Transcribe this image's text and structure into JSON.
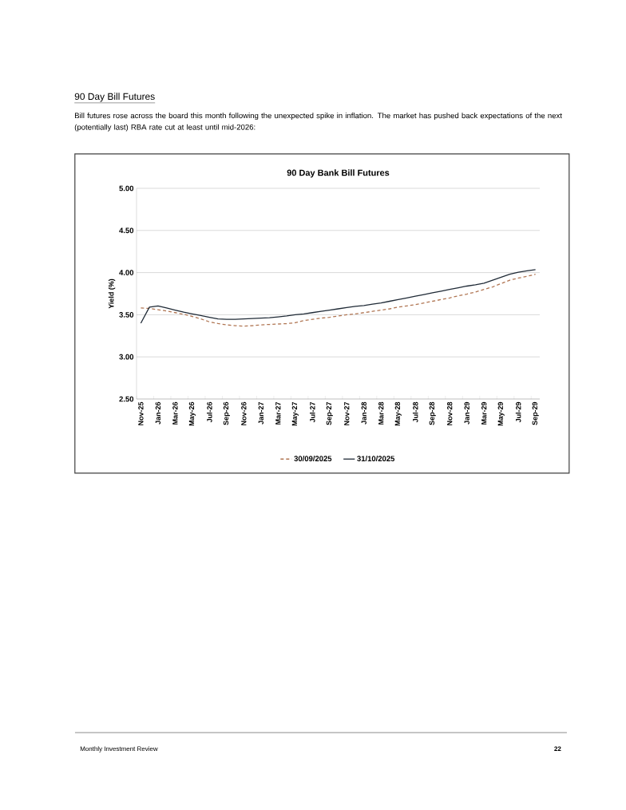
{
  "chart_data": {
    "type": "line",
    "title": "90 Day Bank Bill Futures",
    "ylabel": "Yield (%)",
    "annotations": [
      "90 Day Bill Futures",
      "Bill futures rose across the board this month following the unexpected spike in inflation. The market has pushed back expectations of the next (potentially last) RBA rate cut at least until mid-2026:",
      "Monthly Investment Review",
      "22"
    ],
    "categories": [
      "Nov-25",
      null,
      "Jan-26",
      null,
      "Mar-26",
      null,
      "May-26",
      null,
      "Jul-26",
      null,
      "Sep-26",
      null,
      "Nov-26",
      null,
      "Jan-27",
      null,
      "Mar-27",
      null,
      "May-27",
      null,
      "Jul-27",
      null,
      "Sep-27",
      null,
      "Nov-27",
      null,
      "Jan-28",
      null,
      "Mar-28",
      null,
      "May-28",
      null,
      "Jul-28",
      null,
      "Sep-28",
      null,
      "Nov-28",
      null,
      "Jan-29",
      null,
      "Mar-29",
      null,
      "May-29",
      null,
      "Jul-29",
      null,
      "Sep-29"
    ],
    "series": [
      {
        "name": "30/09/2025",
        "color": "#b07552",
        "line_style": "dashed",
        "values": [
          3.58,
          3.575,
          3.56,
          3.545,
          3.525,
          3.505,
          3.48,
          3.45,
          3.415,
          3.395,
          3.38,
          3.37,
          3.365,
          3.37,
          3.38,
          3.385,
          3.39,
          3.395,
          3.405,
          3.43,
          3.445,
          3.46,
          3.47,
          3.485,
          3.5,
          3.51,
          3.525,
          3.54,
          3.555,
          3.57,
          3.59,
          3.605,
          3.62,
          3.64,
          3.66,
          3.68,
          3.7,
          3.725,
          3.745,
          3.77,
          3.8,
          3.83,
          3.87,
          3.91,
          3.935,
          3.955,
          3.98
        ]
      },
      {
        "name": "31/10/2025",
        "color": "#1f2a36",
        "line_style": "solid",
        "values": [
          3.4,
          3.59,
          3.605,
          3.58,
          3.555,
          3.53,
          3.51,
          3.49,
          3.47,
          3.45,
          3.445,
          3.445,
          3.45,
          3.455,
          3.46,
          3.465,
          3.475,
          3.485,
          3.5,
          3.51,
          3.525,
          3.54,
          3.555,
          3.57,
          3.585,
          3.6,
          3.61,
          3.625,
          3.64,
          3.66,
          3.68,
          3.7,
          3.72,
          3.74,
          3.76,
          3.78,
          3.8,
          3.82,
          3.84,
          3.855,
          3.875,
          3.91,
          3.945,
          3.98,
          4.005,
          4.02,
          4.035
        ]
      }
    ],
    "ylim": [
      2.5,
      5
    ],
    "yticks": [
      {
        "value": 2.5,
        "label": "2.50"
      },
      {
        "value": 3,
        "label": "3.00"
      },
      {
        "value": 3.5,
        "label": "3.50"
      },
      {
        "value": 4,
        "label": "4.00"
      },
      {
        "value": 4.5,
        "label": "4.50"
      },
      {
        "value": 5,
        "label": "5.00"
      }
    ],
    "grid": "y",
    "legend": "bottom",
    "marker": "none"
  }
}
